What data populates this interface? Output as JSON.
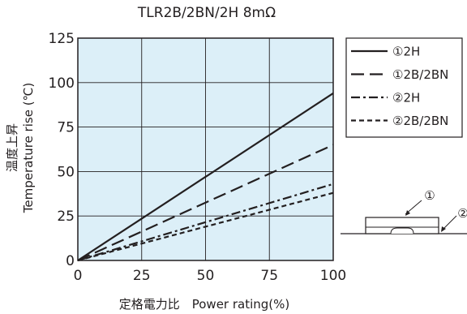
{
  "chart_data": {
    "type": "line",
    "title": "TLR2B/2BN/2H 8mΩ",
    "xlabel": "定格電力比　Power rating(%)",
    "ylabel_jp": "温度上昇",
    "ylabel_en": "Temperature rise (℃)",
    "xlim": [
      0,
      100
    ],
    "ylim": [
      0,
      125
    ],
    "xticks": [
      0,
      25,
      50,
      75,
      100
    ],
    "yticks": [
      0,
      25,
      50,
      75,
      100,
      125
    ],
    "grid": true,
    "plot_background": "#dceff8",
    "legend_position": "top-right, outside plot",
    "series": [
      {
        "name": "①2H",
        "dash": "solid",
        "x": [
          0,
          100
        ],
        "y": [
          0,
          94
        ]
      },
      {
        "name": "①2B/2BN",
        "dash": "long-dash",
        "x": [
          0,
          100
        ],
        "y": [
          0,
          65
        ]
      },
      {
        "name": "②2H",
        "dash": "dash-dot",
        "x": [
          0,
          100
        ],
        "y": [
          0,
          43
        ]
      },
      {
        "name": "②2B/2BN",
        "dash": "short-dash",
        "x": [
          0,
          100
        ],
        "y": [
          0,
          38
        ]
      }
    ]
  },
  "diagram": {
    "point1": "①",
    "point2": "②"
  }
}
